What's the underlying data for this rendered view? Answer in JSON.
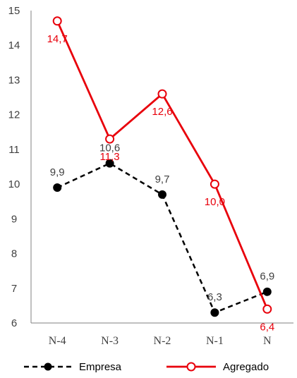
{
  "chart_data": {
    "type": "line",
    "categories": [
      "N-4",
      "N-3",
      "N-2",
      "N-1",
      "N"
    ],
    "ylim": [
      6,
      15
    ],
    "yticks": [
      6,
      7,
      8,
      9,
      10,
      11,
      12,
      13,
      14,
      15
    ],
    "grid": false,
    "legend_position": "bottom",
    "series": [
      {
        "name": "Empresa",
        "values": [
          9.9,
          10.6,
          9.7,
          6.3,
          6.9
        ],
        "labels": [
          "9,9",
          "10,6",
          "9,7",
          "6,3",
          "6,9"
        ],
        "color": "#000000",
        "line_style": "dashed",
        "marker": "filled-circle",
        "label_color": "#404040"
      },
      {
        "name": "Agregado",
        "values": [
          14.7,
          11.3,
          12.6,
          10.0,
          6.4
        ],
        "labels": [
          "14,7",
          "11,3",
          "12,6",
          "10,0",
          "6,4"
        ],
        "color": "#e8000b",
        "line_style": "solid",
        "marker": "open-circle",
        "label_color": "#e8000b"
      }
    ]
  }
}
